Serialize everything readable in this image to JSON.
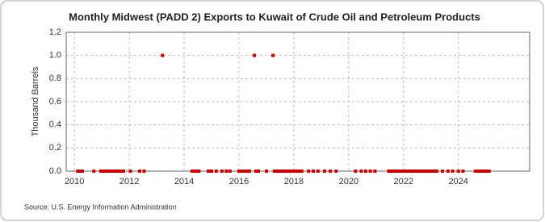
{
  "chart_data": {
    "type": "scatter",
    "title": "Monthly Midwest (PADD 2) Exports to Kuwait of Crude Oil and Petroleum Products",
    "y_label": "Thousand Barrels",
    "source": "Source: U.S. Energy Information Administration",
    "color": "#cc0000",
    "grid": true,
    "xlim": [
      2009.7,
      2026.6
    ],
    "ylim": [
      0,
      1.2
    ],
    "xticks": [
      2010,
      2012,
      2014,
      2016,
      2018,
      2020,
      2022,
      2024
    ],
    "yticks": [
      {
        "value": 0,
        "label": "0.0"
      },
      0.2,
      0.4,
      0.6,
      0.8,
      {
        "value": 1,
        "label": "1.0"
      },
      1.2
    ],
    "x": [
      2010.12,
      2010.21,
      2010.29,
      2010.71,
      2010.96,
      2011.04,
      2011.12,
      2011.21,
      2011.29,
      2011.38,
      2011.46,
      2011.54,
      2011.62,
      2011.71,
      2011.79,
      2012.04,
      2012.38,
      2012.54,
      2013.21,
      2014.29,
      2014.38,
      2014.46,
      2014.54,
      2014.88,
      2015.0,
      2015.17,
      2015.38,
      2015.54,
      2015.67,
      2016.0,
      2016.08,
      2016.17,
      2016.29,
      2016.38,
      2016.56,
      2016.62,
      2016.71,
      2017.0,
      2017.24,
      2017.29,
      2017.38,
      2017.46,
      2017.54,
      2017.62,
      2017.71,
      2017.79,
      2017.88,
      2017.96,
      2018.04,
      2018.12,
      2018.21,
      2018.29,
      2018.54,
      2018.71,
      2018.88,
      2019.12,
      2019.33,
      2019.54,
      2020.25,
      2020.46,
      2020.62,
      2020.79,
      2020.96,
      2021.46,
      2021.54,
      2021.62,
      2021.71,
      2021.79,
      2021.88,
      2021.96,
      2022.04,
      2022.12,
      2022.21,
      2022.29,
      2022.38,
      2022.46,
      2022.54,
      2022.62,
      2022.71,
      2022.79,
      2022.88,
      2022.96,
      2023.04,
      2023.12,
      2023.21,
      2023.42,
      2023.62,
      2023.79,
      2024.0,
      2024.17,
      2024.62,
      2024.71,
      2024.79,
      2024.88,
      2024.96,
      2025.04,
      2025.12
    ],
    "values": [
      0,
      0,
      0,
      0,
      0,
      0,
      0,
      0,
      0,
      0,
      0,
      0,
      0,
      0,
      0,
      0,
      0,
      0,
      1,
      0,
      0,
      0,
      0,
      0,
      0,
      0,
      0,
      0,
      0,
      0,
      0,
      0,
      0,
      0,
      1,
      0,
      0,
      0,
      1,
      0,
      0,
      0,
      0,
      0,
      0,
      0,
      0,
      0,
      0,
      0,
      0,
      0,
      0,
      0,
      0,
      0,
      0,
      0,
      0,
      0,
      0,
      0,
      0,
      0,
      0,
      0,
      0,
      0,
      0,
      0,
      0,
      0,
      0,
      0,
      0,
      0,
      0,
      0,
      0,
      0,
      0,
      0,
      0,
      0,
      0,
      0,
      0,
      0,
      0,
      0,
      0,
      0,
      0,
      0,
      0,
      0,
      0
    ]
  }
}
